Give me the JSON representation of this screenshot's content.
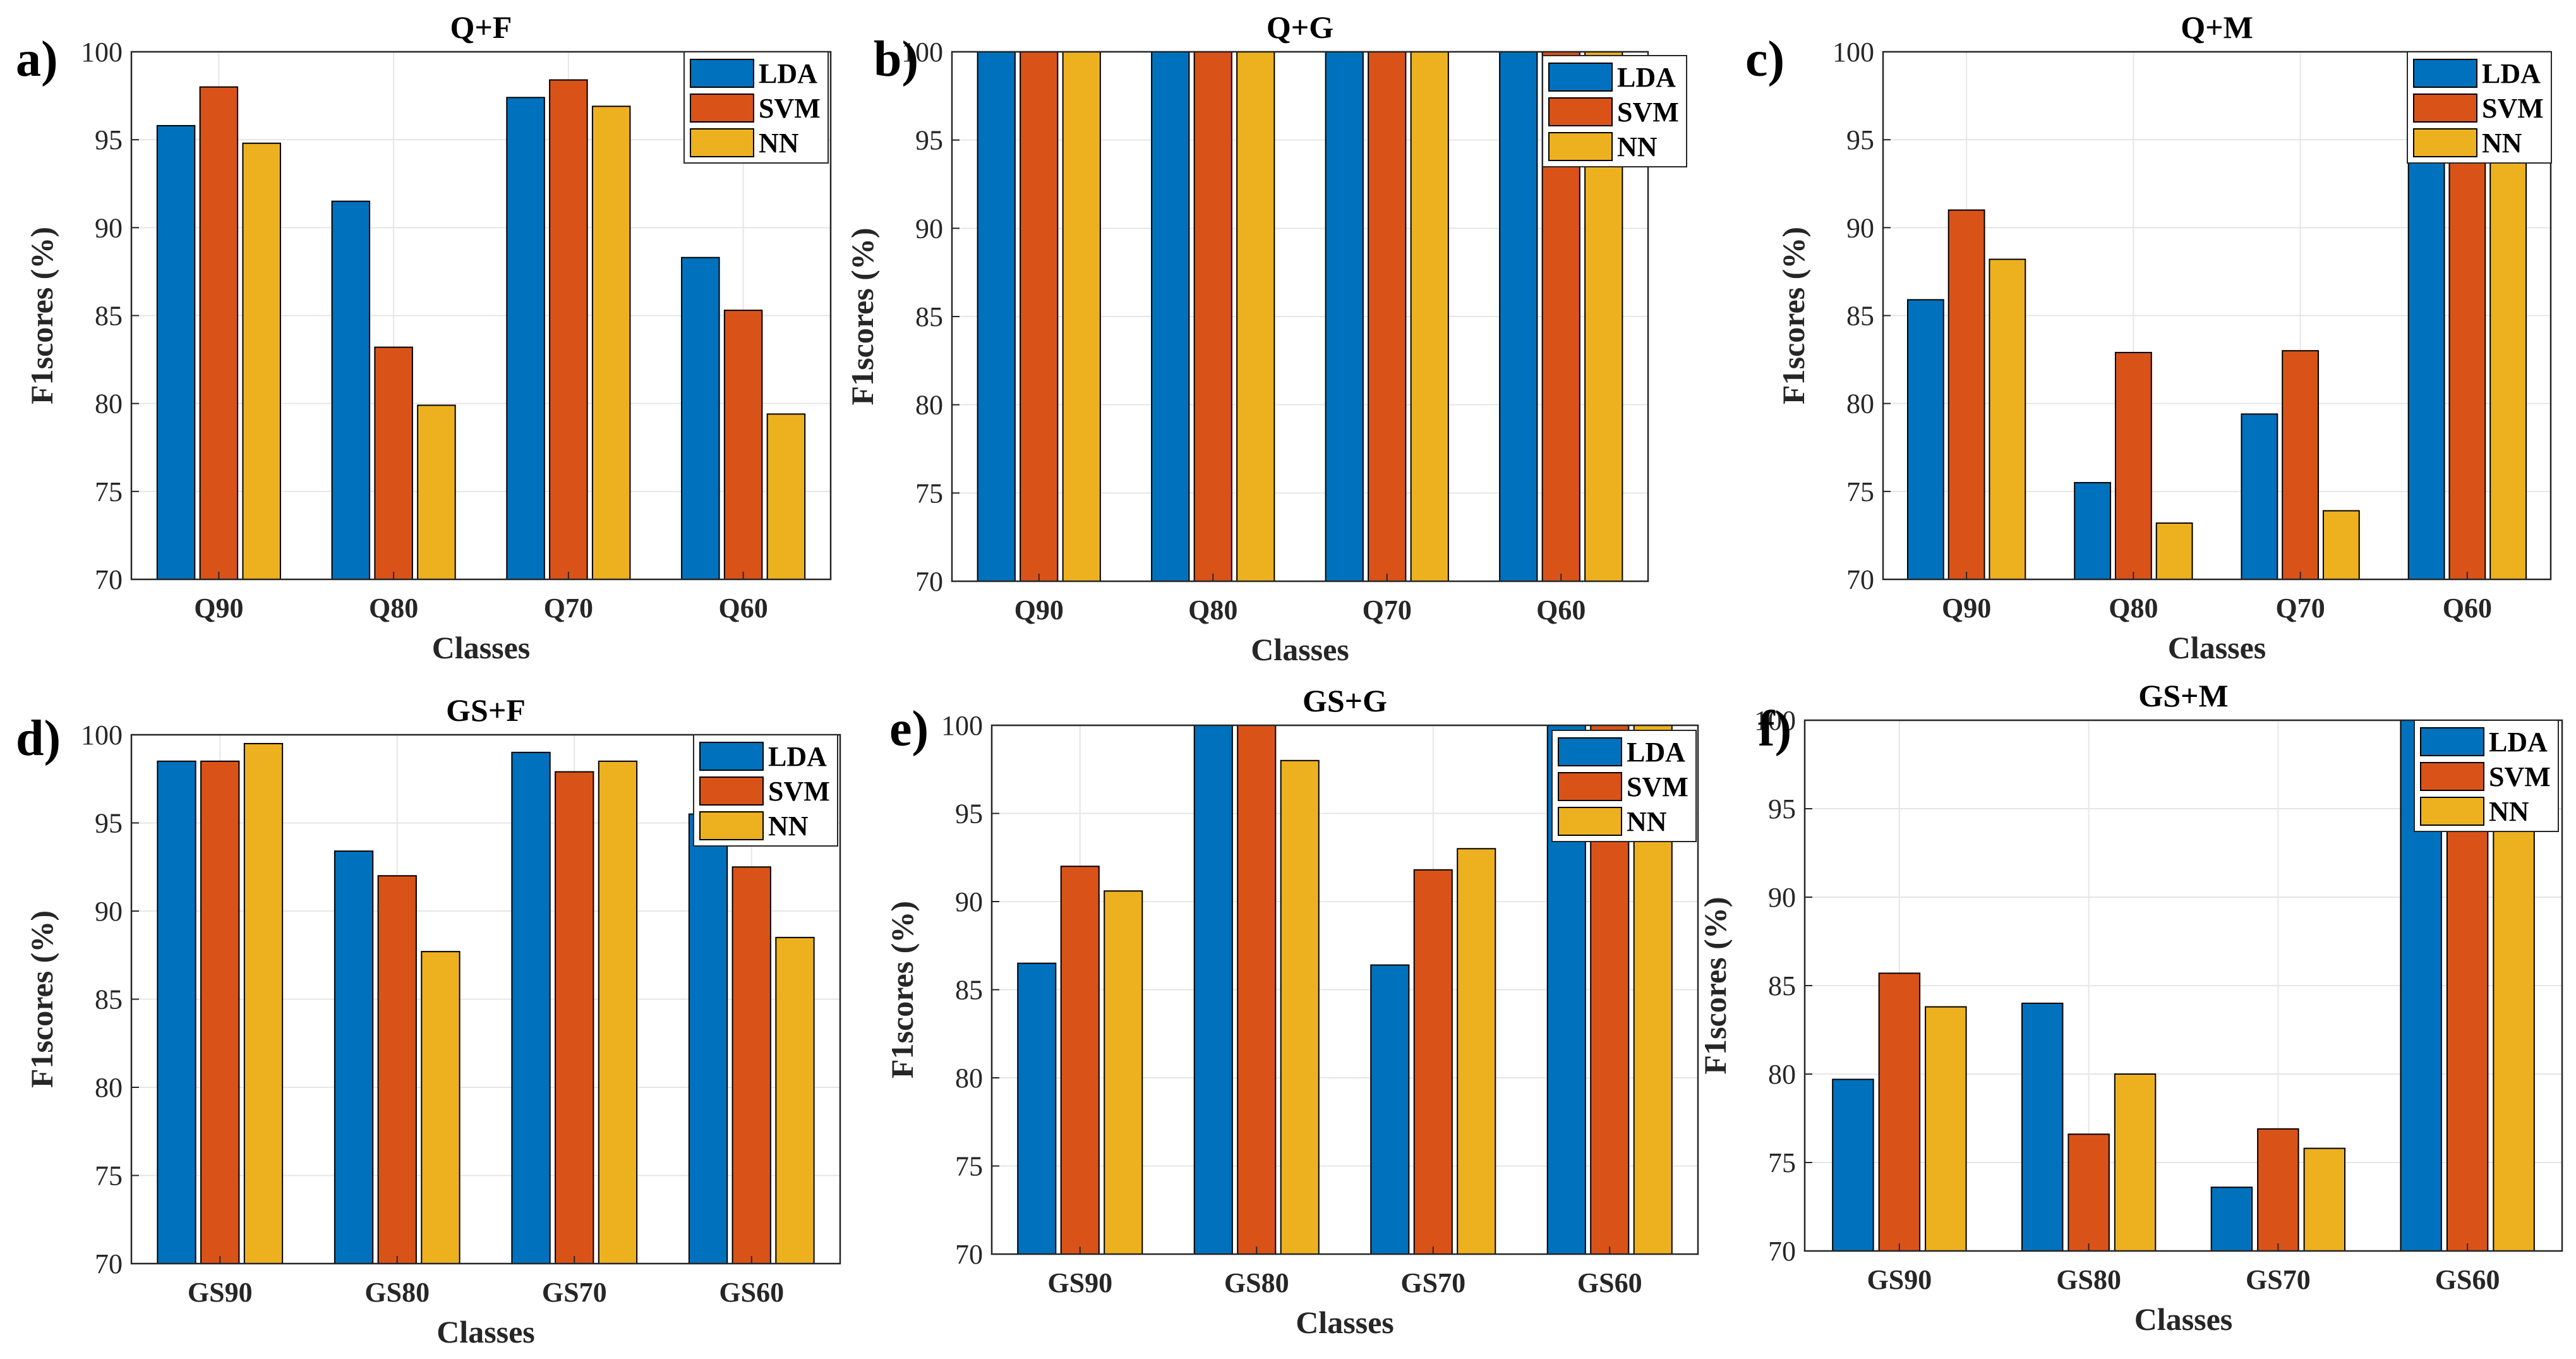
{
  "chart_data": [
    {
      "type": "bar",
      "panel_label": "a)",
      "title": "Q+F",
      "xlabel": "Classes",
      "ylabel": "F1scores (%)",
      "ylim": [
        70,
        100
      ],
      "yticks": [
        70,
        75,
        80,
        85,
        90,
        95,
        100
      ],
      "grid": true,
      "legend_position": "top-right",
      "categories": [
        "Q90",
        "Q80",
        "Q70",
        "Q60"
      ],
      "series": [
        {
          "name": "LDA",
          "values": [
            95.8,
            91.5,
            97.4,
            88.3
          ]
        },
        {
          "name": "SVM",
          "values": [
            98.0,
            83.2,
            98.4,
            85.3
          ]
        },
        {
          "name": "NN",
          "values": [
            94.8,
            79.9,
            96.9,
            79.4
          ]
        }
      ]
    },
    {
      "type": "bar",
      "panel_label": "b)",
      "title": "Q+G",
      "xlabel": "Classes",
      "ylabel": "F1scores (%)",
      "ylim": [
        70,
        100
      ],
      "yticks": [
        70,
        75,
        80,
        85,
        90,
        95,
        100
      ],
      "grid": true,
      "legend_position": "top-right",
      "categories": [
        "Q90",
        "Q80",
        "Q70",
        "Q60"
      ],
      "series": [
        {
          "name": "LDA",
          "values": [
            100,
            100,
            100,
            100
          ]
        },
        {
          "name": "SVM",
          "values": [
            100,
            100,
            100,
            100
          ]
        },
        {
          "name": "NN",
          "values": [
            100,
            100,
            100,
            100
          ]
        }
      ]
    },
    {
      "type": "bar",
      "panel_label": "c)",
      "title": "Q+M",
      "xlabel": "Classes",
      "ylabel": "F1scores (%)",
      "ylim": [
        70,
        100
      ],
      "yticks": [
        70,
        75,
        80,
        85,
        90,
        95,
        100
      ],
      "grid": true,
      "legend_position": "top-right",
      "categories": [
        "Q90",
        "Q80",
        "Q70",
        "Q60"
      ],
      "series": [
        {
          "name": "LDA",
          "values": [
            85.9,
            75.5,
            79.4,
            100
          ]
        },
        {
          "name": "SVM",
          "values": [
            91.0,
            82.9,
            83.0,
            100
          ]
        },
        {
          "name": "NN",
          "values": [
            88.2,
            73.2,
            73.9,
            100
          ]
        }
      ]
    },
    {
      "type": "bar",
      "panel_label": "d)",
      "title": "GS+F",
      "xlabel": "Classes",
      "ylabel": "F1scores (%)",
      "ylim": [
        70,
        100
      ],
      "yticks": [
        70,
        75,
        80,
        85,
        90,
        95,
        100
      ],
      "grid": true,
      "legend_position": "top-right",
      "categories": [
        "GS90",
        "GS80",
        "GS70",
        "GS60"
      ],
      "series": [
        {
          "name": "LDA",
          "values": [
            98.5,
            93.4,
            99.0,
            95.5
          ]
        },
        {
          "name": "SVM",
          "values": [
            98.5,
            92.0,
            97.9,
            92.5
          ]
        },
        {
          "name": "NN",
          "values": [
            99.5,
            87.7,
            98.5,
            88.5
          ]
        }
      ]
    },
    {
      "type": "bar",
      "panel_label": "e)",
      "title": "GS+G",
      "xlabel": "Classes",
      "ylabel": "F1scores (%)",
      "ylim": [
        70,
        100
      ],
      "yticks": [
        70,
        75,
        80,
        85,
        90,
        95,
        100
      ],
      "grid": true,
      "legend_position": "top-right",
      "categories": [
        "GS90",
        "GS80",
        "GS70",
        "GS60"
      ],
      "series": [
        {
          "name": "LDA",
          "values": [
            86.5,
            100,
            86.4,
            100
          ]
        },
        {
          "name": "SVM",
          "values": [
            92.0,
            100,
            91.8,
            100
          ]
        },
        {
          "name": "NN",
          "values": [
            90.6,
            98.0,
            93.0,
            100
          ]
        }
      ]
    },
    {
      "type": "bar",
      "panel_label": "f)",
      "title": "GS+M",
      "xlabel": "Classes",
      "ylabel": "F1scores (%)",
      "ylim": [
        70,
        100
      ],
      "yticks": [
        70,
        75,
        80,
        85,
        90,
        95,
        100
      ],
      "grid": true,
      "legend_position": "top-right",
      "categories": [
        "GS90",
        "GS80",
        "GS70",
        "GS60"
      ],
      "series": [
        {
          "name": "LDA",
          "values": [
            79.7,
            84.0,
            73.6,
            100
          ]
        },
        {
          "name": "SVM",
          "values": [
            85.7,
            76.6,
            76.9,
            100
          ]
        },
        {
          "name": "NN",
          "values": [
            83.8,
            80.0,
            75.8,
            100
          ]
        }
      ]
    }
  ],
  "colors": {
    "LDA": "#0072BD",
    "SVM": "#D95319",
    "NN": "#EDB120"
  }
}
